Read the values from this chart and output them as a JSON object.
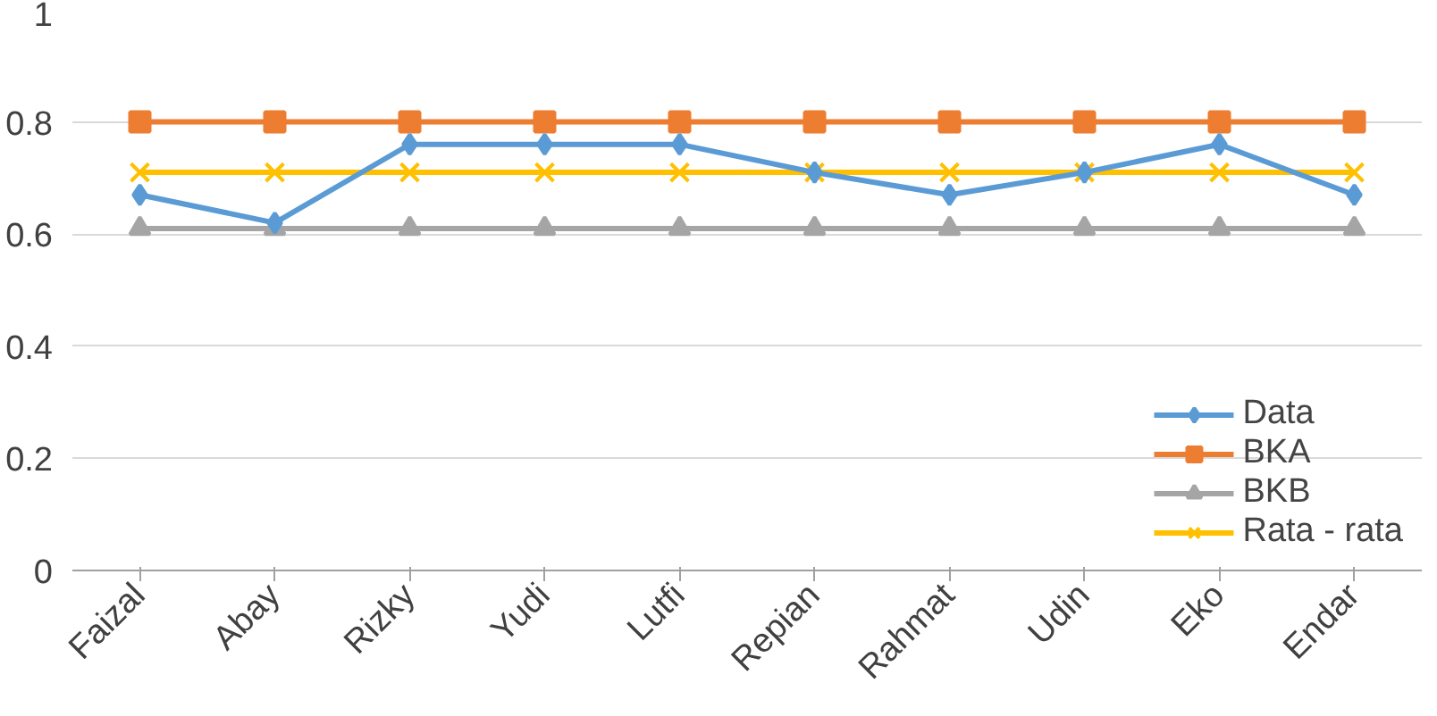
{
  "chart_data": {
    "type": "line",
    "categories": [
      "Faizal",
      "Abay",
      "Rizky",
      "Yudi",
      "Lutfi",
      "Repian",
      "Rahmat",
      "Udin",
      "Eko",
      "Endar"
    ],
    "series": [
      {
        "name": "Data",
        "color": "#5b9bd5",
        "marker": "diamond",
        "values": [
          0.67,
          0.62,
          0.76,
          0.76,
          0.76,
          0.71,
          0.67,
          0.71,
          0.76,
          0.67
        ]
      },
      {
        "name": "BKA",
        "color": "#ed7d31",
        "marker": "square",
        "values": [
          0.8,
          0.8,
          0.8,
          0.8,
          0.8,
          0.8,
          0.8,
          0.8,
          0.8,
          0.8
        ]
      },
      {
        "name": "BKB",
        "color": "#a5a5a5",
        "marker": "triangle",
        "values": [
          0.61,
          0.61,
          0.61,
          0.61,
          0.61,
          0.61,
          0.61,
          0.61,
          0.61,
          0.61
        ]
      },
      {
        "name": "Rata - rata",
        "color": "#ffc000",
        "marker": "cross",
        "values": [
          0.71,
          0.71,
          0.71,
          0.71,
          0.71,
          0.71,
          0.71,
          0.71,
          0.71,
          0.71
        ]
      }
    ],
    "ylim": [
      0,
      1
    ],
    "yticks": [
      0,
      {
        "value": 0.2,
        "label": "0.2"
      },
      {
        "value": 0.4,
        "label": "0.4"
      },
      {
        "value": 0.6,
        "label": "0.6"
      },
      {
        "value": 0.8,
        "label": "0.8"
      },
      1
    ],
    "grid": "y",
    "legend": "bottom right",
    "line_style": "solid"
  }
}
